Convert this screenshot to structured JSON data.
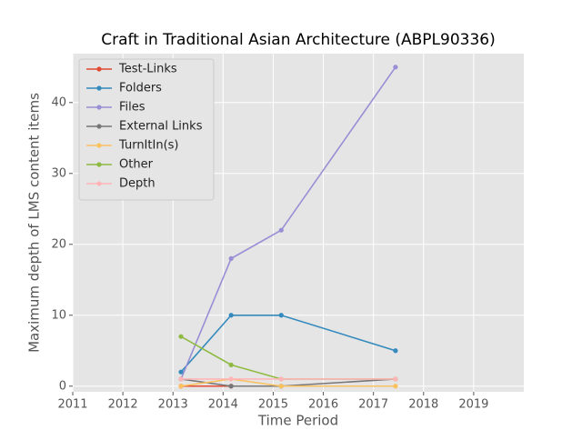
{
  "chart_data": {
    "type": "line",
    "title": "Craft in Traditional Asian Architecture (ABPL90336)",
    "x_label": "Time Period",
    "y_label": "Maximum depth of LMS content items",
    "x": [
      2013.16,
      2014.16,
      2015.16,
      2017.44
    ],
    "series": [
      {
        "name": "Test-Links",
        "color": "#E24A33",
        "values": [
          0,
          0,
          null,
          null
        ]
      },
      {
        "name": "Folders",
        "color": "#348ABD",
        "values": [
          2,
          10,
          10,
          5
        ]
      },
      {
        "name": "Files",
        "color": "#988ED5",
        "values": [
          1,
          18,
          22,
          45
        ]
      },
      {
        "name": "External Links",
        "color": "#777777",
        "values": [
          1,
          0,
          0,
          1
        ]
      },
      {
        "name": "TurnItIn(s)",
        "color": "#FBC15E",
        "values": [
          0,
          1,
          0,
          0
        ]
      },
      {
        "name": "Other",
        "color": "#8EBA42",
        "values": [
          7,
          3,
          1,
          1
        ]
      },
      {
        "name": "Depth",
        "color": "#FFB5B8",
        "values": [
          1,
          1,
          1,
          1
        ]
      }
    ],
    "xlim": [
      2011,
      2020
    ],
    "xticks": [
      2011,
      2012,
      2013,
      2014,
      2015,
      2016,
      2017,
      2018,
      2019
    ],
    "ylim": [
      -0.8,
      46.9
    ],
    "yticks": [
      0,
      10,
      20,
      30,
      40
    ],
    "grid": true,
    "legend": "upper-left"
  }
}
